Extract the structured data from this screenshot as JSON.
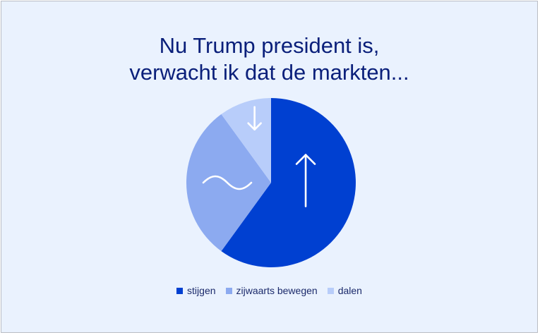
{
  "chart_data": {
    "type": "pie",
    "title_lines": [
      "Nu Trump president is,",
      "verwacht ik dat de markten..."
    ],
    "slices": [
      {
        "label": "stijgen",
        "value": 60,
        "color": "#0040d1",
        "icon": "arrow-up-icon"
      },
      {
        "label": "zijwaarts bewegen",
        "value": 30,
        "color": "#8caaf0",
        "icon": "wave-icon"
      },
      {
        "label": "dalen",
        "value": 10,
        "color": "#b8cdfa",
        "icon": "arrow-down-icon"
      }
    ],
    "legend_position": "bottom",
    "background_color": "#eaf2fe",
    "title_color": "#0a1f7a"
  }
}
